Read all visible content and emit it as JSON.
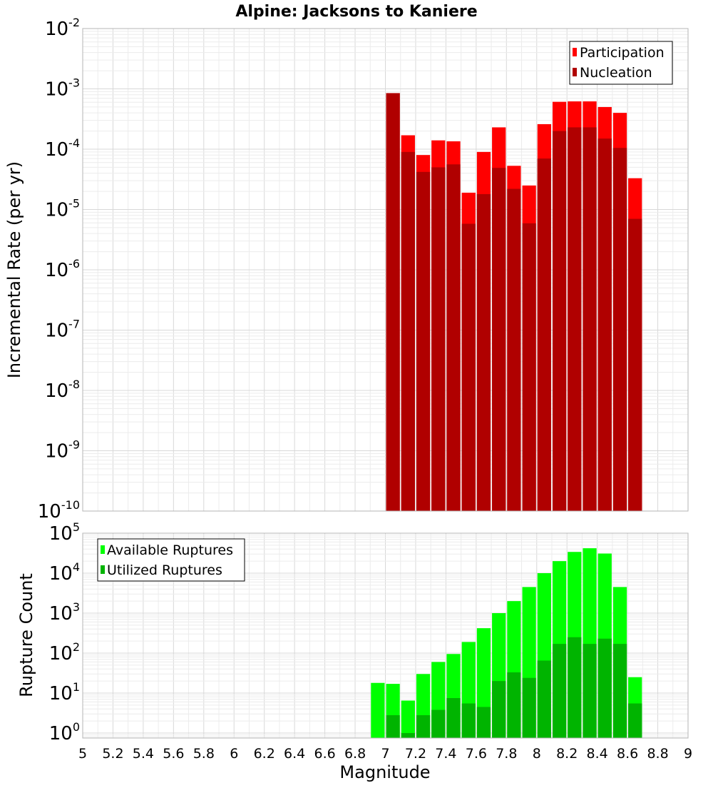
{
  "title": "Alpine: Jacksons to Kaniere",
  "colors": {
    "participation": "#ff0000",
    "nucleation": "#b00000",
    "available": "#00ff00",
    "utilized": "#00b400"
  },
  "x_axis": {
    "label": "Magnitude",
    "ticks": [
      "5",
      "5.2",
      "5.4",
      "5.6",
      "5.8",
      "6",
      "6.2",
      "6.4",
      "6.6",
      "6.8",
      "7",
      "7.2",
      "7.4",
      "7.6",
      "7.8",
      "8",
      "8.2",
      "8.4",
      "8.6",
      "8.8",
      "9"
    ]
  },
  "chart_data": [
    {
      "type": "bar",
      "title": "Alpine: Jacksons to Kaniere",
      "xlabel": "Magnitude",
      "ylabel": "Incremental Rate (per yr)",
      "xlim": [
        5,
        9
      ],
      "ylim": [
        1e-10,
        0.01
      ],
      "yscale": "log",
      "grid": true,
      "legend": "top-right",
      "y_ticks": [
        {
          "base": "10",
          "exp": "-2"
        },
        {
          "base": "10",
          "exp": "-3"
        },
        {
          "base": "10",
          "exp": "-4"
        },
        {
          "base": "10",
          "exp": "-5"
        },
        {
          "base": "10",
          "exp": "-6"
        },
        {
          "base": "10",
          "exp": "-7"
        },
        {
          "base": "10",
          "exp": "-8"
        },
        {
          "base": "10",
          "exp": "-9"
        },
        {
          "base": "10",
          "exp": "-10"
        }
      ],
      "x": [
        7.05,
        7.15,
        7.25,
        7.35,
        7.45,
        7.55,
        7.65,
        7.75,
        7.85,
        7.95,
        8.05,
        8.15,
        8.25,
        8.35,
        8.45,
        8.55,
        8.65
      ],
      "series": [
        {
          "name": "Participation",
          "color_key": "participation",
          "values": [
            0.00085,
            0.00017,
            8e-05,
            0.00014,
            0.000135,
            1.9e-05,
            9e-05,
            0.00023,
            5.3e-05,
            2.5e-05,
            0.00026,
            0.00061,
            0.00062,
            0.00062,
            0.0005,
            0.0004,
            3.3e-05
          ]
        },
        {
          "name": "Nucleation",
          "color_key": "nucleation",
          "values": [
            0.00085,
            9e-05,
            4.2e-05,
            5e-05,
            5.6e-05,
            5.8e-06,
            1.8e-05,
            4.9e-05,
            2.2e-05,
            5.9e-06,
            7e-05,
            0.0002,
            0.00023,
            0.00023,
            0.00015,
            0.000105,
            7e-06
          ]
        }
      ]
    },
    {
      "type": "bar",
      "title": "",
      "xlabel": "Magnitude",
      "ylabel": "Rupture Count",
      "xlim": [
        5,
        9
      ],
      "ylim": [
        0.75,
        100000.0
      ],
      "yscale": "log",
      "grid": true,
      "legend": "top-left",
      "y_ticks": [
        {
          "base": "10",
          "exp": "5"
        },
        {
          "base": "10",
          "exp": "4"
        },
        {
          "base": "10",
          "exp": "3"
        },
        {
          "base": "10",
          "exp": "2"
        },
        {
          "base": "10",
          "exp": "1"
        },
        {
          "base": "10",
          "exp": "0"
        }
      ],
      "x": [
        6.95,
        7.05,
        7.15,
        7.25,
        7.35,
        7.45,
        7.55,
        7.65,
        7.75,
        7.85,
        7.95,
        8.05,
        8.15,
        8.25,
        8.35,
        8.45,
        8.55,
        8.65
      ],
      "series": [
        {
          "name": "Available Ruptures",
          "color_key": "available",
          "values": [
            18,
            17,
            6.5,
            30,
            60,
            95,
            190,
            420,
            1000,
            2000,
            4500,
            10000,
            20000,
            34000,
            42000,
            31000,
            4500,
            25
          ]
        },
        {
          "name": "Utilized Ruptures",
          "color_key": "utilized",
          "values": [
            0,
            2.8,
            1.0,
            2.8,
            3.8,
            7.5,
            5.5,
            4.5,
            20,
            33,
            24,
            65,
            170,
            250,
            170,
            230,
            170,
            5.5
          ]
        }
      ]
    }
  ]
}
